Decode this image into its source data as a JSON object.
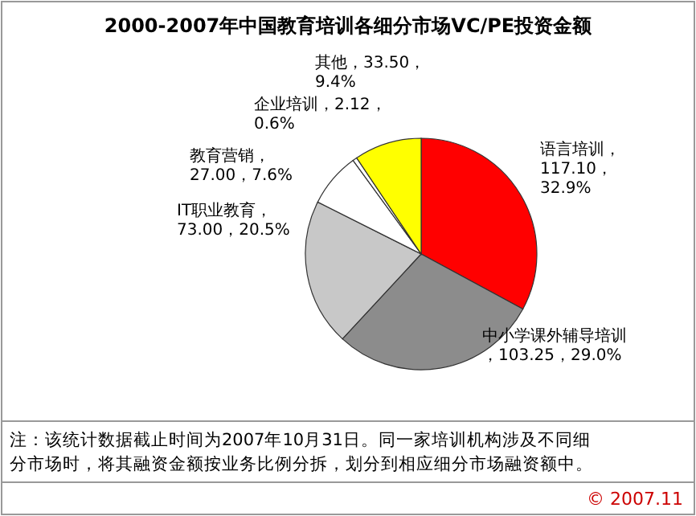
{
  "chart_data": {
    "type": "pie",
    "title": "2000-2007年中国教育培训各细分市场VC/PE投资金额",
    "categories": [
      "语言培训",
      "中小学课外辅导培训",
      "IT职业教育",
      "教育营销",
      "企业培训",
      "其他"
    ],
    "values": [
      117.1,
      103.25,
      73.0,
      27.0,
      2.12,
      33.5
    ],
    "value_labels": [
      "，117.10，32.9%",
      "，103.25，29.0%",
      "，73.00，20.5%",
      "，27.00，7.6%",
      "，2.12，0.6%",
      "，33.50，9.4%"
    ],
    "colors": [
      "#ff0000",
      "#8c8c8c",
      "#c8c8c8",
      "#ffffff",
      "#ffffff",
      "#ffff00"
    ],
    "annotations": [
      "注：该统计数据截止时间为2007年10月31日。同一家培训机构涉及不同细分市场时，将其融资金额按业务比例分拆，划分到相应细分市场融资额中。",
      "© 2007.11"
    ]
  }
}
